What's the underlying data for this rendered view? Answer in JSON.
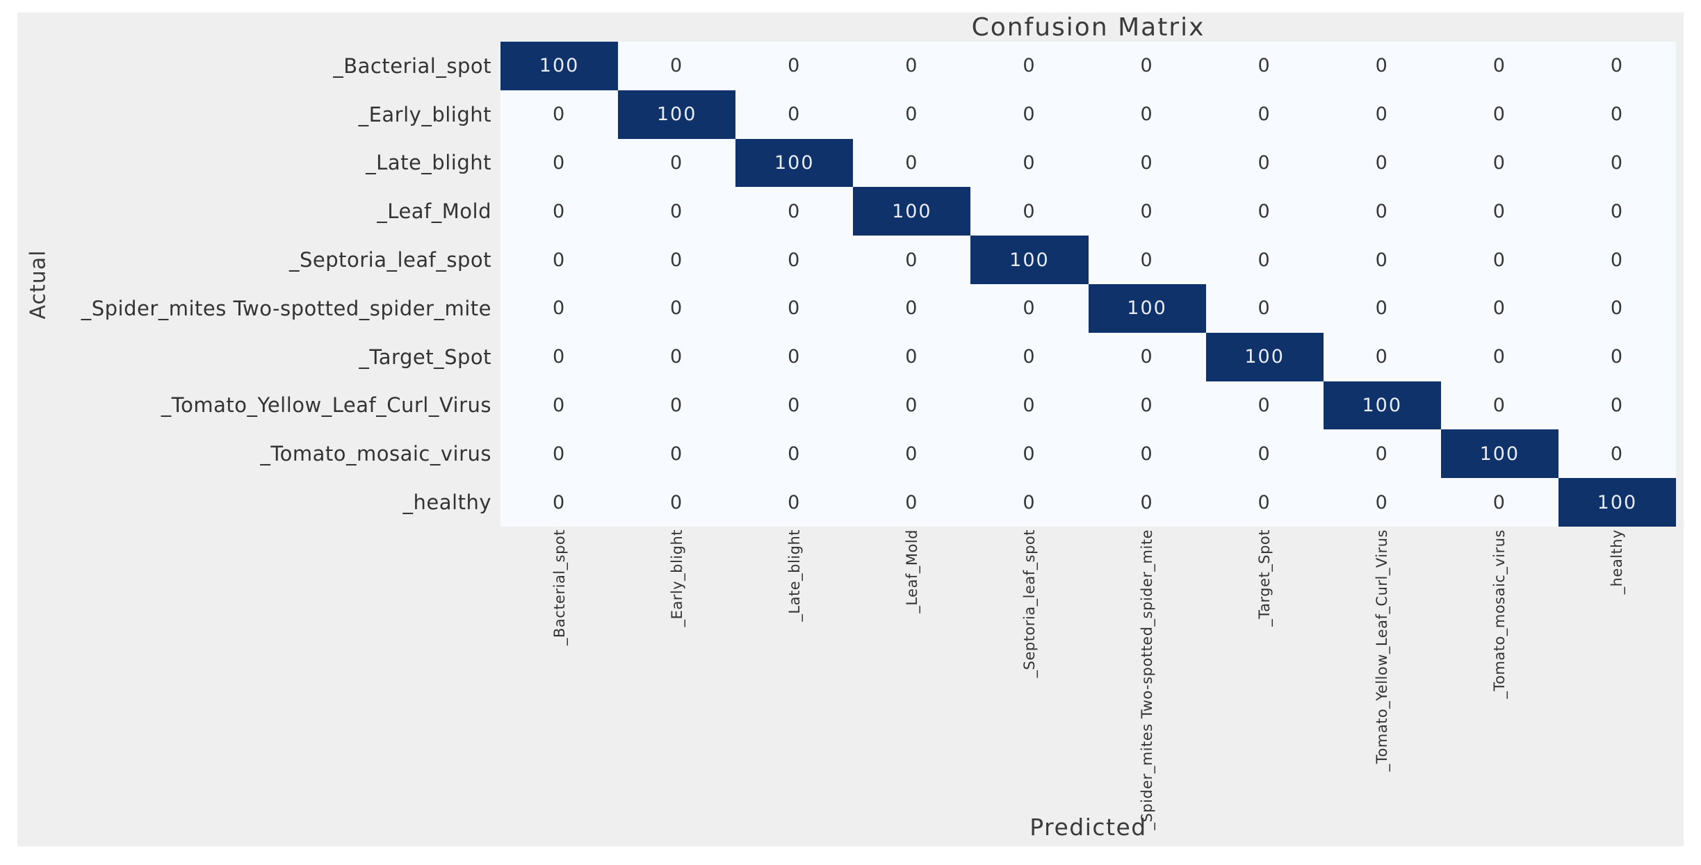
{
  "colors": {
    "figure_bg": "#efefef",
    "page_bg": "#ffffff",
    "cell_high": "#0e3269",
    "cell_low": "#f7fbff",
    "annot_light": "#e9edf4",
    "annot_dark": "#363636",
    "tick_text": "#333333",
    "title_text": "#3a3a3a"
  },
  "chart_data": {
    "type": "heatmap",
    "title": "Confusion Matrix",
    "xlabel": "Predicted",
    "ylabel": "Actual",
    "colormap": "Blues",
    "value_range": [
      0,
      100
    ],
    "legend": "none",
    "grid": false,
    "categories": [
      "_Bacterial_spot",
      "_Early_blight",
      "_Late_blight",
      "_Leaf_Mold",
      "_Septoria_leaf_spot",
      "_Spider_mites Two-spotted_spider_mite",
      "_Target_Spot",
      "_Tomato_Yellow_Leaf_Curl_Virus",
      "_Tomato_mosaic_virus",
      "_healthy"
    ],
    "matrix": [
      [
        100,
        0,
        0,
        0,
        0,
        0,
        0,
        0,
        0,
        0
      ],
      [
        0,
        100,
        0,
        0,
        0,
        0,
        0,
        0,
        0,
        0
      ],
      [
        0,
        0,
        100,
        0,
        0,
        0,
        0,
        0,
        0,
        0
      ],
      [
        0,
        0,
        0,
        100,
        0,
        0,
        0,
        0,
        0,
        0
      ],
      [
        0,
        0,
        0,
        0,
        100,
        0,
        0,
        0,
        0,
        0
      ],
      [
        0,
        0,
        0,
        0,
        0,
        100,
        0,
        0,
        0,
        0
      ],
      [
        0,
        0,
        0,
        0,
        0,
        0,
        100,
        0,
        0,
        0
      ],
      [
        0,
        0,
        0,
        0,
        0,
        0,
        0,
        100,
        0,
        0
      ],
      [
        0,
        0,
        0,
        0,
        0,
        0,
        0,
        0,
        100,
        0
      ],
      [
        0,
        0,
        0,
        0,
        0,
        0,
        0,
        0,
        0,
        100
      ]
    ]
  }
}
